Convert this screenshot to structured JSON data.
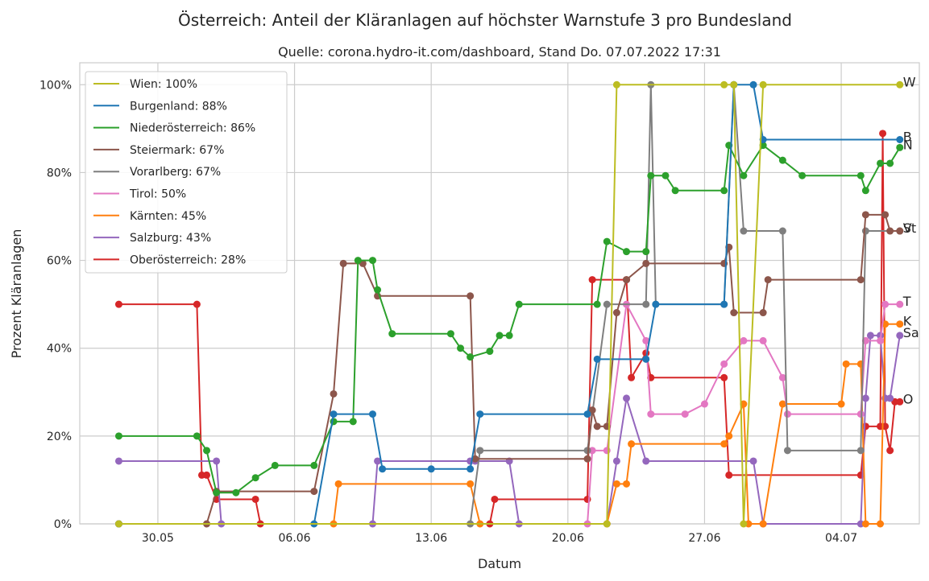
{
  "chart_data": {
    "type": "line",
    "title": "Österreich: Anteil der Kläranlagen auf höchster Warnstufe 3 pro Bundesland",
    "subtitle": "Quelle: corona.hydro-it.com/dashboard, Stand Do. 07.07.2022 17:31",
    "xlabel": "Datum",
    "ylabel": "Prozent Kläranlagen",
    "x_ticks": [
      "30.05",
      "06.06",
      "13.06",
      "20.06",
      "27.06",
      "04.07"
    ],
    "y_ticks": [
      "0%",
      "20%",
      "40%",
      "60%",
      "80%",
      "100%"
    ],
    "xlim": [
      "2022-05-26",
      "2022-07-08"
    ],
    "ylim": [
      0,
      105
    ],
    "grid": true,
    "legend_position": "top-left",
    "series": [
      {
        "name": "Wien: 100%",
        "short": "W",
        "color": "#bcbd22",
        "points": [
          [
            "2022-05-28",
            0
          ],
          [
            "2022-06-22",
            0
          ],
          [
            "2022-06-22 12:00",
            100
          ],
          [
            "2022-06-28",
            100
          ],
          [
            "2022-06-28 12:00",
            100
          ],
          [
            "2022-06-29",
            0
          ],
          [
            "2022-06-30",
            100
          ],
          [
            "2022-07-07",
            100
          ]
        ]
      },
      {
        "name": "Burgenland: 88%",
        "short": "B",
        "color": "#1f77b4",
        "points": [
          [
            "2022-05-28",
            0
          ],
          [
            "2022-06-07",
            0
          ],
          [
            "2022-06-08",
            25
          ],
          [
            "2022-06-10",
            25
          ],
          [
            "2022-06-10 12:00",
            12.5
          ],
          [
            "2022-06-13",
            12.5
          ],
          [
            "2022-06-15",
            12.5
          ],
          [
            "2022-06-15 12:00",
            25
          ],
          [
            "2022-06-21",
            25
          ],
          [
            "2022-06-21 12:00",
            37.5
          ],
          [
            "2022-06-24",
            37.5
          ],
          [
            "2022-06-24 12:00",
            50
          ],
          [
            "2022-06-28",
            50
          ],
          [
            "2022-06-28 12:00",
            100
          ],
          [
            "2022-06-29 12:00",
            100
          ],
          [
            "2022-06-30",
            87.5
          ],
          [
            "2022-07-07",
            87.5
          ]
        ]
      },
      {
        "name": "Niederösterreich: 86%",
        "short": "N",
        "color": "#2ca02c",
        "points": [
          [
            "2022-05-28",
            20
          ],
          [
            "2022-06-01",
            20
          ],
          [
            "2022-06-01 12:00",
            16.7
          ],
          [
            "2022-06-02",
            7.1
          ],
          [
            "2022-06-03",
            7.1
          ],
          [
            "2022-06-04",
            10.5
          ],
          [
            "2022-06-05",
            13.3
          ],
          [
            "2022-06-07",
            13.3
          ],
          [
            "2022-06-08",
            23.3
          ],
          [
            "2022-06-09",
            23.3
          ],
          [
            "2022-06-09 06:00",
            60
          ],
          [
            "2022-06-10",
            60
          ],
          [
            "2022-06-10 06:00",
            53.3
          ],
          [
            "2022-06-11",
            43.3
          ],
          [
            "2022-06-14",
            43.3
          ],
          [
            "2022-06-14 12:00",
            40
          ],
          [
            "2022-06-15",
            38
          ],
          [
            "2022-06-16",
            39.3
          ],
          [
            "2022-06-16 12:00",
            42.9
          ],
          [
            "2022-06-17",
            42.9
          ],
          [
            "2022-06-17 12:00",
            50
          ],
          [
            "2022-06-21 12:00",
            50
          ],
          [
            "2022-06-22",
            64.3
          ],
          [
            "2022-06-23",
            62
          ],
          [
            "2022-06-24",
            62
          ],
          [
            "2022-06-24 06:00",
            79.3
          ],
          [
            "2022-06-25",
            79.3
          ],
          [
            "2022-06-25 12:00",
            75.9
          ],
          [
            "2022-06-28",
            75.9
          ],
          [
            "2022-06-28 06:00",
            86.2
          ],
          [
            "2022-06-29",
            79.3
          ],
          [
            "2022-06-30",
            86.2
          ],
          [
            "2022-07-01",
            82.8
          ],
          [
            "2022-07-02",
            79.3
          ],
          [
            "2022-07-05",
            79.3
          ],
          [
            "2022-07-05 06:00",
            75.9
          ],
          [
            "2022-07-06",
            82.1
          ],
          [
            "2022-07-06 12:00",
            82.1
          ],
          [
            "2022-07-07",
            85.7
          ]
        ]
      },
      {
        "name": "Steiermark: 67%",
        "short": "St",
        "color": "#8c564b",
        "points": [
          [
            "2022-05-28",
            0
          ],
          [
            "2022-06-01 12:00",
            0
          ],
          [
            "2022-06-02",
            7.4
          ],
          [
            "2022-06-07",
            7.4
          ],
          [
            "2022-06-08",
            29.6
          ],
          [
            "2022-06-08 12:00",
            59.3
          ],
          [
            "2022-06-09 12:00",
            59.3
          ],
          [
            "2022-06-10 06:00",
            51.9
          ],
          [
            "2022-06-15",
            51.9
          ],
          [
            "2022-06-15 06:00",
            14.8
          ],
          [
            "2022-06-21",
            14.8
          ],
          [
            "2022-06-21 06:00",
            25.9
          ],
          [
            "2022-06-21 12:00",
            22.2
          ],
          [
            "2022-06-22",
            22.2
          ],
          [
            "2022-06-22 12:00",
            48.1
          ],
          [
            "2022-06-23",
            55.6
          ],
          [
            "2022-06-24",
            59.3
          ],
          [
            "2022-06-28",
            59.3
          ],
          [
            "2022-06-28 06:00",
            63
          ],
          [
            "2022-06-28 12:00",
            48.1
          ],
          [
            "2022-06-30",
            48.1
          ],
          [
            "2022-06-30 06:00",
            55.6
          ],
          [
            "2022-07-05",
            55.6
          ],
          [
            "2022-07-05 06:00",
            70.4
          ],
          [
            "2022-07-06 06:00",
            70.4
          ],
          [
            "2022-07-06 12:00",
            66.7
          ],
          [
            "2022-07-07",
            66.7
          ]
        ]
      },
      {
        "name": "Vorarlberg: 67%",
        "short": "V",
        "color": "#7f7f7f",
        "points": [
          [
            "2022-05-28",
            0
          ],
          [
            "2022-06-15",
            0
          ],
          [
            "2022-06-15 12:00",
            16.7
          ],
          [
            "2022-06-21",
            16.7
          ],
          [
            "2022-06-22",
            50
          ],
          [
            "2022-06-24",
            50
          ],
          [
            "2022-06-24 06:00",
            100
          ],
          [
            "2022-06-24 12:00",
            50
          ],
          [
            "2022-06-28",
            50
          ],
          [
            "2022-06-28 12:00",
            100
          ],
          [
            "2022-06-29",
            66.7
          ],
          [
            "2022-07-01",
            66.7
          ],
          [
            "2022-07-01 06:00",
            16.7
          ],
          [
            "2022-07-05",
            16.7
          ],
          [
            "2022-07-05 06:00",
            66.7
          ],
          [
            "2022-07-07",
            66.7
          ]
        ]
      },
      {
        "name": "Tirol: 50%",
        "short": "T",
        "color": "#e377c2",
        "points": [
          [
            "2022-05-28",
            0
          ],
          [
            "2022-06-21",
            0
          ],
          [
            "2022-06-21 06:00",
            16.7
          ],
          [
            "2022-06-22",
            16.7
          ],
          [
            "2022-06-23",
            50
          ],
          [
            "2022-06-24",
            41.7
          ],
          [
            "2022-06-24 06:00",
            25
          ],
          [
            "2022-06-26",
            25
          ],
          [
            "2022-06-27",
            27.3
          ],
          [
            "2022-06-28",
            36.4
          ],
          [
            "2022-06-29",
            41.7
          ],
          [
            "2022-06-30",
            41.7
          ],
          [
            "2022-07-01",
            33.3
          ],
          [
            "2022-07-01 06:00",
            25
          ],
          [
            "2022-07-05",
            25
          ],
          [
            "2022-07-05 06:00",
            41.7
          ],
          [
            "2022-07-06",
            41.7
          ],
          [
            "2022-07-06 06:00",
            50
          ],
          [
            "2022-07-07",
            50
          ]
        ]
      },
      {
        "name": "Kärnten: 45%",
        "short": "K",
        "color": "#ff7f0e",
        "points": [
          [
            "2022-05-28",
            0
          ],
          [
            "2022-06-08",
            0
          ],
          [
            "2022-06-08 06:00",
            9.1
          ],
          [
            "2022-06-15",
            9.1
          ],
          [
            "2022-06-15 12:00",
            0
          ],
          [
            "2022-06-22",
            0
          ],
          [
            "2022-06-22 12:00",
            9.1
          ],
          [
            "2022-06-23",
            9.1
          ],
          [
            "2022-06-23 06:00",
            18.2
          ],
          [
            "2022-06-28",
            18.2
          ],
          [
            "2022-06-28 06:00",
            20
          ],
          [
            "2022-06-29",
            27.3
          ],
          [
            "2022-06-29 06:00",
            0
          ],
          [
            "2022-06-30",
            0
          ],
          [
            "2022-07-01",
            27.3
          ],
          [
            "2022-07-04",
            27.3
          ],
          [
            "2022-07-04 06:00",
            36.4
          ],
          [
            "2022-07-05",
            36.4
          ],
          [
            "2022-07-05 06:00",
            0
          ],
          [
            "2022-07-06",
            0
          ],
          [
            "2022-07-06 06:00",
            45.5
          ],
          [
            "2022-07-07",
            45.5
          ]
        ]
      },
      {
        "name": "Salzburg: 43%",
        "short": "Sa",
        "color": "#9467bd",
        "points": [
          [
            "2022-05-28",
            14.3
          ],
          [
            "2022-06-02",
            14.3
          ],
          [
            "2022-06-02 06:00",
            0
          ],
          [
            "2022-06-10",
            0
          ],
          [
            "2022-06-10 06:00",
            14.3
          ],
          [
            "2022-06-15",
            14.3
          ],
          [
            "2022-06-15 06:00",
            14.3
          ],
          [
            "2022-06-17",
            14.3
          ],
          [
            "2022-06-17 12:00",
            0
          ],
          [
            "2022-06-22",
            0
          ],
          [
            "2022-06-22 12:00",
            14.3
          ],
          [
            "2022-06-23",
            28.6
          ],
          [
            "2022-06-24",
            14.3
          ],
          [
            "2022-06-29 12:00",
            14.3
          ],
          [
            "2022-06-30",
            0
          ],
          [
            "2022-07-05",
            0
          ],
          [
            "2022-07-05 06:00",
            28.6
          ],
          [
            "2022-07-05 12:00",
            42.9
          ],
          [
            "2022-07-06",
            42.9
          ],
          [
            "2022-07-06 06:00",
            28.6
          ],
          [
            "2022-07-06 12:00",
            28.6
          ],
          [
            "2022-07-07",
            42.9
          ]
        ]
      },
      {
        "name": "Oberösterreich: 28%",
        "short": "O",
        "color": "#d62728",
        "points": [
          [
            "2022-05-28",
            50
          ],
          [
            "2022-06-01",
            50
          ],
          [
            "2022-06-01 06:00",
            11.1
          ],
          [
            "2022-06-01 12:00",
            11.1
          ],
          [
            "2022-06-02",
            5.6
          ],
          [
            "2022-06-04",
            5.6
          ],
          [
            "2022-06-04 06:00",
            0
          ],
          [
            "2022-06-16",
            0
          ],
          [
            "2022-06-16 06:00",
            5.6
          ],
          [
            "2022-06-21",
            5.6
          ],
          [
            "2022-06-21 06:00",
            55.6
          ],
          [
            "2022-06-23",
            55.6
          ],
          [
            "2022-06-23 06:00",
            33.3
          ],
          [
            "2022-06-24",
            38.9
          ],
          [
            "2022-06-24 06:00",
            33.3
          ],
          [
            "2022-06-28",
            33.3
          ],
          [
            "2022-06-28 06:00",
            11.1
          ],
          [
            "2022-07-05",
            11.1
          ],
          [
            "2022-07-05 06:00",
            22.2
          ],
          [
            "2022-07-06",
            22.2
          ],
          [
            "2022-07-06 03:00",
            88.9
          ],
          [
            "2022-07-06 06:00",
            22.2
          ],
          [
            "2022-07-06 12:00",
            16.7
          ],
          [
            "2022-07-06 18:00",
            27.8
          ],
          [
            "2022-07-07",
            27.8
          ]
        ]
      }
    ]
  }
}
